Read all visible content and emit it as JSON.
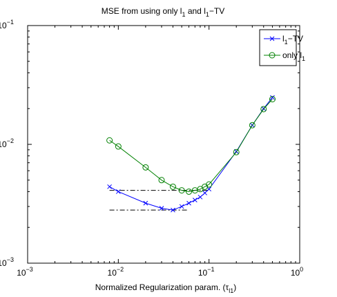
{
  "chart_data": {
    "type": "line",
    "title": {
      "text": "MSE from using only l",
      "sub1": "1",
      "mid": " and l",
      "sub2": "1",
      "tail": "−TV"
    },
    "xlabel": {
      "text": "Normalized Regularization param. (τ",
      "sub": "l1",
      "tail": ")"
    },
    "ylabel": "",
    "xscale": "log",
    "yscale": "log",
    "xlim": [
      0.001,
      1
    ],
    "ylim": [
      0.001,
      0.1
    ],
    "x_ticks": [
      {
        "value": 0.001,
        "base": "10",
        "exp": "−3"
      },
      {
        "value": 0.01,
        "base": "10",
        "exp": "−2"
      },
      {
        "value": 0.1,
        "base": "10",
        "exp": "−1"
      },
      {
        "value": 1,
        "base": "10",
        "exp": "0"
      }
    ],
    "y_ticks": [
      {
        "value": 0.001,
        "base": "10",
        "exp": "−3"
      },
      {
        "value": 0.01,
        "base": "10",
        "exp": "−2"
      },
      {
        "value": 0.1,
        "base": "10",
        "exp": "−1"
      }
    ],
    "grid": false,
    "legend_position": "top-right",
    "series": [
      {
        "name": "l1−TV",
        "legend": {
          "text": "l",
          "sub": "1",
          "tail": "−TV"
        },
        "color": "#0000ff",
        "marker": "x",
        "x": [
          0.008,
          0.01,
          0.02,
          0.03,
          0.04,
          0.05,
          0.06,
          0.07,
          0.08,
          0.09,
          0.1,
          0.2,
          0.3,
          0.4,
          0.5
        ],
        "y": [
          0.0044,
          0.004,
          0.0032,
          0.0029,
          0.0028,
          0.003,
          0.0032,
          0.0034,
          0.0036,
          0.0039,
          0.0042,
          0.0087,
          0.0145,
          0.02,
          0.0248
        ]
      },
      {
        "name": "only l1",
        "legend": {
          "text": "only l",
          "sub": "1",
          "tail": ""
        },
        "color": "#008000",
        "marker": "o",
        "x": [
          0.008,
          0.01,
          0.02,
          0.03,
          0.04,
          0.05,
          0.06,
          0.07,
          0.08,
          0.09,
          0.1,
          0.2,
          0.3,
          0.4,
          0.5
        ],
        "y": [
          0.0108,
          0.0096,
          0.0064,
          0.005,
          0.0044,
          0.0041,
          0.004,
          0.0041,
          0.0042,
          0.0044,
          0.0046,
          0.0086,
          0.0145,
          0.0198,
          0.024
        ]
      }
    ],
    "reference_lines": [
      {
        "x_start": 0.008,
        "x_end": 0.1,
        "y": 0.0041
      },
      {
        "x_start": 0.008,
        "x_end": 0.06,
        "y": 0.0028
      }
    ],
    "reference_line_color": "#000000"
  }
}
